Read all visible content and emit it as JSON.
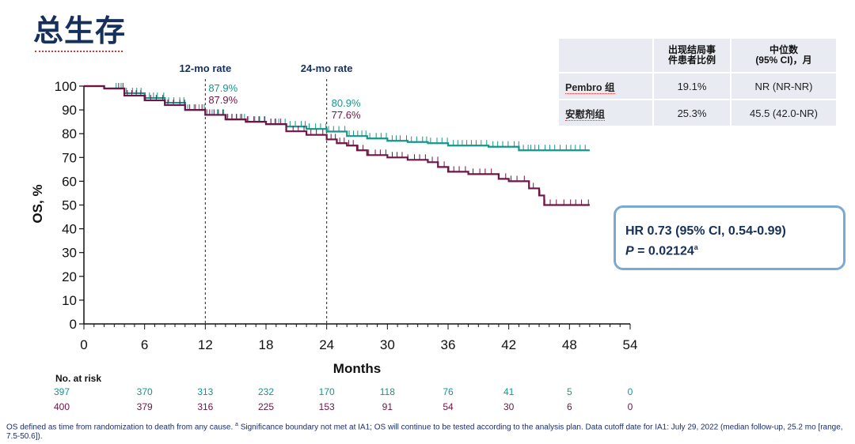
{
  "page": {
    "title": "总生存"
  },
  "summary_table": {
    "headers": {
      "events": "出现结局事件患者比例",
      "median": "中位数\n(95% CI)，月"
    },
    "rows": [
      {
        "arm": "Pembro 组",
        "events": "19.1%",
        "median": "NR (NR-NR)"
      },
      {
        "arm": "安慰剂组",
        "events": "25.3%",
        "median": "45.5 (42.0-NR)"
      }
    ]
  },
  "hr_box": {
    "line1": "HR 0.73 (95% CI, 0.54-0.99)",
    "p_label": "P",
    "p_value": " = 0.02124",
    "p_sup": "a"
  },
  "footnote": {
    "part1": "OS defined as time from randomization to death from any cause. ",
    "sup": "a",
    "part2": " Significance boundary not met at IA1; OS will continue to be tested according to the analysis plan. Data cutoff date for IA1: July 29, 2022 (median follow-up, 25.2 mo [range, 7.5-50.6])."
  },
  "colors": {
    "pembro": "#14968a",
    "placebo": "#6e1446",
    "title": "#16305c",
    "hr_border": "#7aa9d6"
  },
  "chart_data": {
    "type": "line",
    "subtype": "kaplan-meier",
    "xlabel": "Months",
    "ylabel": "OS, %",
    "xlim": [
      0,
      54
    ],
    "ylim": [
      0,
      100
    ],
    "xticks": [
      0,
      6,
      12,
      18,
      24,
      30,
      36,
      42,
      48,
      54
    ],
    "yticks": [
      0,
      10,
      20,
      30,
      40,
      50,
      60,
      70,
      80,
      90,
      100
    ],
    "reference_lines": [
      {
        "x": 12,
        "label": "12-mo rate",
        "pembro": "87.9%",
        "placebo": "87.9%"
      },
      {
        "x": 24,
        "label": "24-mo rate",
        "pembro": "80.9%",
        "placebo": "77.6%"
      }
    ],
    "series": [
      {
        "name": "Pembro 组",
        "color": "#14968a",
        "points": [
          [
            0,
            100
          ],
          [
            2,
            99
          ],
          [
            4,
            97
          ],
          [
            6,
            95
          ],
          [
            8,
            93
          ],
          [
            10,
            90
          ],
          [
            12,
            87.9
          ],
          [
            14,
            86
          ],
          [
            16,
            85
          ],
          [
            18,
            84
          ],
          [
            20,
            83
          ],
          [
            22,
            82
          ],
          [
            24,
            80.9
          ],
          [
            26,
            79
          ],
          [
            28,
            78
          ],
          [
            30,
            77
          ],
          [
            32,
            76.5
          ],
          [
            34,
            76
          ],
          [
            36,
            75
          ],
          [
            38,
            75
          ],
          [
            40,
            74.5
          ],
          [
            42,
            74.5
          ],
          [
            43,
            73
          ],
          [
            50,
            73
          ]
        ],
        "censor_ranges": [
          [
            3,
            12
          ],
          [
            12,
            24
          ],
          [
            24,
            44
          ],
          [
            44,
            50
          ]
        ]
      },
      {
        "name": "安慰剂组",
        "color": "#6e1446",
        "points": [
          [
            0,
            100
          ],
          [
            2,
            99
          ],
          [
            4,
            96
          ],
          [
            6,
            94
          ],
          [
            8,
            92
          ],
          [
            10,
            90
          ],
          [
            12,
            87.9
          ],
          [
            14,
            86
          ],
          [
            16,
            85
          ],
          [
            18,
            84
          ],
          [
            20,
            81
          ],
          [
            22,
            79.5
          ],
          [
            24,
            77.6
          ],
          [
            25,
            76
          ],
          [
            26,
            75
          ],
          [
            27,
            73
          ],
          [
            28,
            71
          ],
          [
            30,
            70
          ],
          [
            32,
            69
          ],
          [
            34,
            68
          ],
          [
            35,
            66
          ],
          [
            36,
            64
          ],
          [
            38,
            63
          ],
          [
            40,
            63
          ],
          [
            41,
            61
          ],
          [
            42,
            60
          ],
          [
            44,
            57
          ],
          [
            45,
            54
          ],
          [
            45.5,
            50
          ],
          [
            50,
            50
          ]
        ],
        "censor_ranges": [
          [
            3,
            12
          ],
          [
            12,
            24
          ],
          [
            24,
            44
          ],
          [
            44,
            50
          ]
        ]
      }
    ],
    "at_risk": {
      "title": "No. at risk",
      "times": [
        0,
        6,
        12,
        18,
        24,
        30,
        36,
        42,
        48,
        54
      ],
      "pembro": [
        "397",
        "370",
        "313",
        "232",
        "170",
        "118",
        "76",
        "41",
        "5",
        "0"
      ],
      "placebo": [
        "400",
        "379",
        "316",
        "225",
        "153",
        "91",
        "54",
        "30",
        "6",
        "0"
      ]
    }
  }
}
